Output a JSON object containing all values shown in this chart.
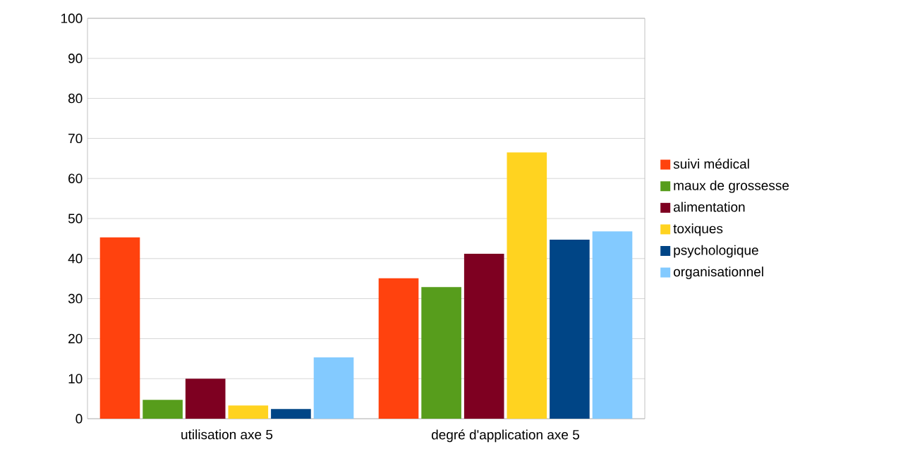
{
  "chart_data": {
    "type": "bar",
    "categories": [
      "utilisation axe 5",
      "degré d'application axe 5"
    ],
    "series": [
      {
        "name": "suivi médical",
        "color": "#ff420e",
        "values": [
          45.3,
          35.1
        ]
      },
      {
        "name": "maux de grossesse",
        "color": "#579d1c",
        "values": [
          4.7,
          32.9
        ]
      },
      {
        "name": "alimentation",
        "color": "#7e0021",
        "values": [
          10,
          41.2
        ]
      },
      {
        "name": "toxiques",
        "color": "#ffd320",
        "values": [
          3.3,
          66.5
        ]
      },
      {
        "name": "psychologique",
        "color": "#004586",
        "values": [
          2.4,
          44.7
        ]
      },
      {
        "name": "organisationnel",
        "color": "#83caff",
        "values": [
          15.3,
          46.8
        ]
      }
    ],
    "ylim": [
      0,
      100
    ],
    "yticks": [
      0,
      10,
      20,
      30,
      40,
      50,
      60,
      70,
      80,
      90,
      100
    ],
    "grid": "y",
    "legend": "right"
  }
}
